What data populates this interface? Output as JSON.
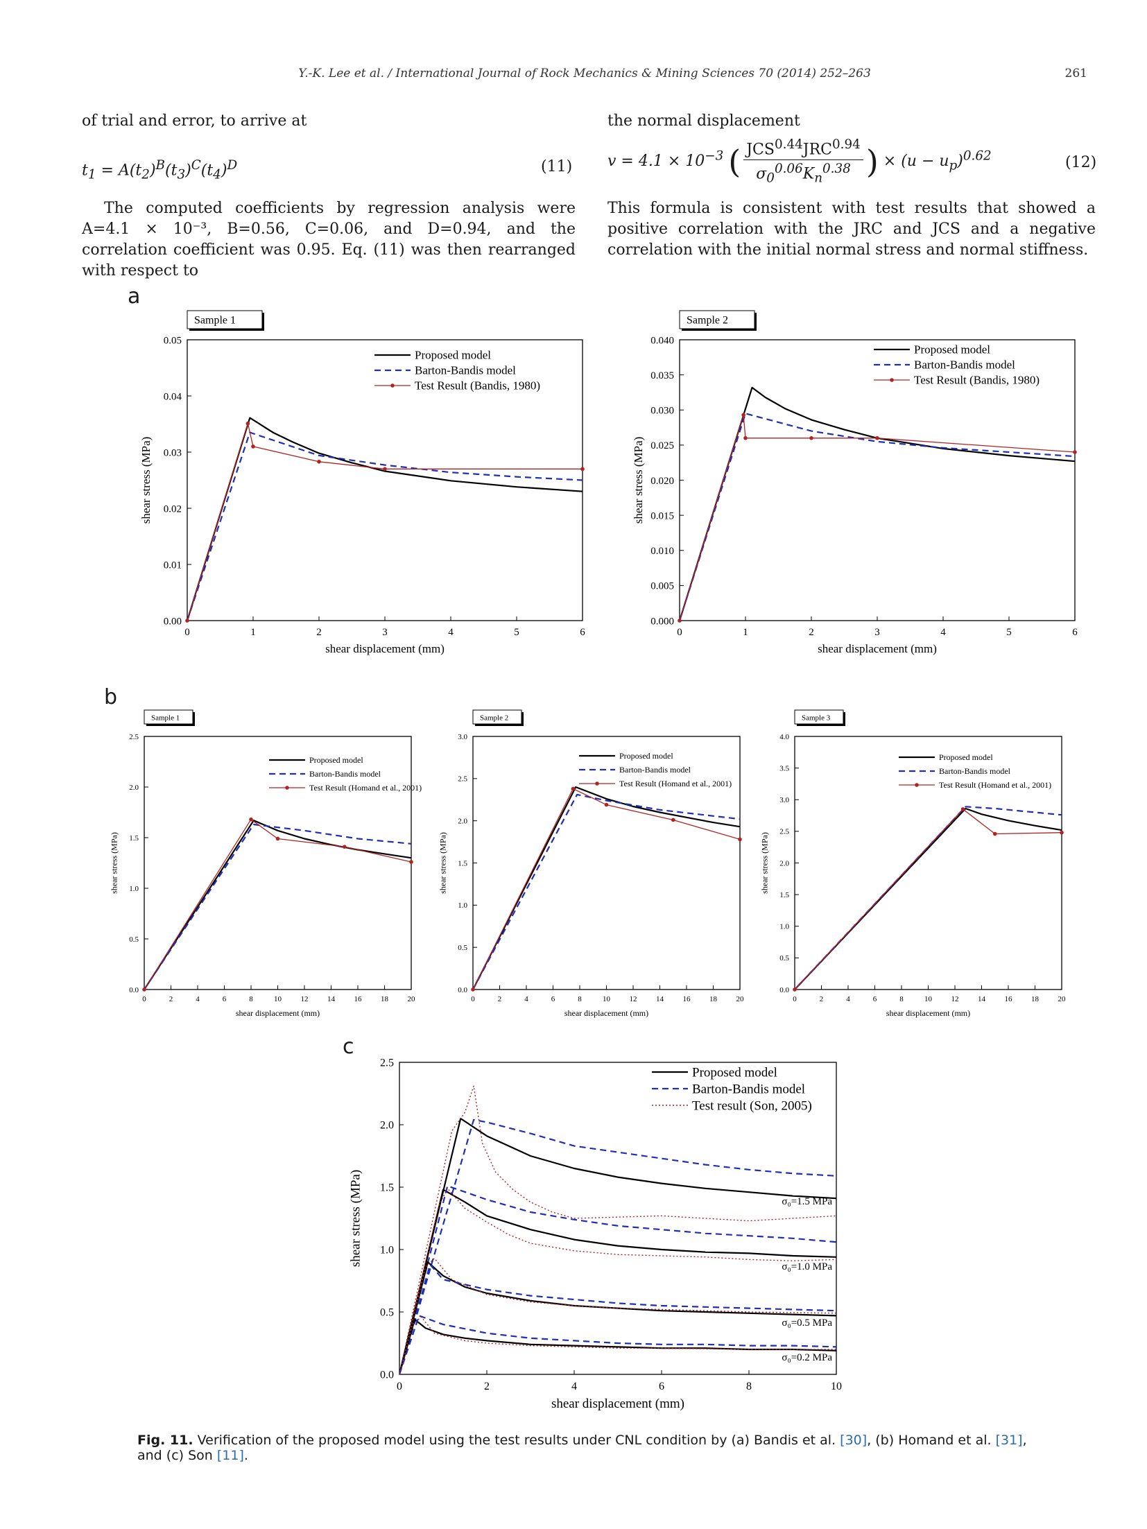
{
  "header": {
    "running_head": "Y.-K. Lee et al. / International Journal of Rock Mechanics & Mining Sciences 70 (2014) 252–263",
    "page_number": "261"
  },
  "left_column": {
    "lead_in": "of trial and error, to arrive at",
    "eq11_lhs": "t",
    "eq11_lhs_sub": "1",
    "eq11_rhs_a": "= A(t",
    "eq11_rhs_a_sub": "2",
    "eq11_rhs_b": ")",
    "eq11_rhs_b_sup": "B",
    "eq11_rhs_c": "(t",
    "eq11_rhs_c_sub": "3",
    "eq11_rhs_d": ")",
    "eq11_rhs_d_sup": "C",
    "eq11_rhs_e": "(t",
    "eq11_rhs_e_sub": "4",
    "eq11_rhs_f": ")",
    "eq11_rhs_f_sup": "D",
    "eq11_number": "(11)",
    "paragraph_1": "The computed coefficients by regression analysis were A=4.1 × 10⁻³, B=0.56, C=0.06, and D=0.94, and the correlation coefficient was 0.95. Eq. (11) was then rearranged with respect to"
  },
  "right_column": {
    "lead_in": "the normal displacement",
    "eq12_v": "v = 4.1 × 10",
    "eq12_exp": "−3",
    "eq12_num": "JCS",
    "eq12_num_sup1": "0.44",
    "eq12_num_mid": "JRC",
    "eq12_num_sup2": "0.94",
    "eq12_den": "σ",
    "eq12_den_sub1": "0",
    "eq12_den_sup1": "0.06",
    "eq12_den_k": "K",
    "eq12_den_sub2": "n",
    "eq12_den_sup2": "0.38",
    "eq12_tail": "× (u − u",
    "eq12_tail_sub": "p",
    "eq12_tail_end": ")",
    "eq12_tail_sup": "0.62",
    "eq12_number": "(12)",
    "paragraph_1": "This formula is consistent with test results that showed a positive correlation with the JRC and JCS and a negative correlation with the initial normal stress and normal stiffness."
  },
  "figure": {
    "panel_a": "a",
    "panel_b": "b",
    "panel_c": "c",
    "caption_label": "Fig. 11.",
    "caption_text": " Verification of the proposed model using the test results under CNL condition by (a) Bandis et al. ",
    "ref_30": "[30]",
    "caption_mid1": ", (b) Homand et al. ",
    "ref_31": "[31]",
    "caption_mid2": ", and (c) Son ",
    "ref_11": "[11]",
    "caption_end": "."
  },
  "colors": {
    "proposed": "#000000",
    "barton": "#1f2fb5",
    "test": "#b22222"
  },
  "chart_data": [
    {
      "id": "a1",
      "type": "line",
      "sample_label": "Sample 1",
      "xlabel": "shear displacement (mm)",
      "ylabel": "shear stress (MPa)",
      "xlim": [
        0,
        6
      ],
      "ylim": [
        0,
        0.05
      ],
      "xticks": [
        0,
        1,
        2,
        3,
        4,
        5,
        6
      ],
      "yticks": [
        0,
        0.01,
        0.02,
        0.03,
        0.04,
        0.05
      ],
      "ytick_labels": [
        "0.00",
        "0.01",
        "0.02",
        "0.03",
        "0.04",
        "0.05"
      ],
      "legend": [
        "Proposed model",
        "Barton-Bandis model",
        "Test Result (Bandis, 1980)"
      ],
      "series": [
        {
          "name": "Proposed model",
          "style": "solid",
          "x": [
            0,
            0.95,
            1.1,
            1.3,
            1.6,
            2.0,
            2.5,
            3.0,
            4.0,
            5.0,
            6.0
          ],
          "y": [
            0,
            0.0361,
            0.035,
            0.0335,
            0.0318,
            0.0298,
            0.0281,
            0.0266,
            0.0249,
            0.0238,
            0.023
          ]
        },
        {
          "name": "Barton-Bandis model",
          "style": "dash",
          "x": [
            0,
            0.95,
            2.0,
            3.0,
            4.0,
            5.0,
            6.0
          ],
          "y": [
            0,
            0.0335,
            0.0294,
            0.0277,
            0.0264,
            0.0256,
            0.025
          ]
        },
        {
          "name": "Test Result (Bandis, 1980)",
          "style": "marker",
          "x": [
            0,
            0.92,
            1.0,
            2.0,
            3.0,
            6.0
          ],
          "y": [
            0,
            0.0351,
            0.031,
            0.0283,
            0.027,
            0.027
          ]
        }
      ]
    },
    {
      "id": "a2",
      "type": "line",
      "sample_label": "Sample 2",
      "xlabel": "shear displacement (mm)",
      "ylabel": "shear stress (MPa)",
      "xlim": [
        0,
        6
      ],
      "ylim": [
        0,
        0.04
      ],
      "xticks": [
        0,
        1,
        2,
        3,
        4,
        5,
        6
      ],
      "yticks": [
        0,
        0.005,
        0.01,
        0.015,
        0.02,
        0.025,
        0.03,
        0.035,
        0.04
      ],
      "ytick_labels": [
        "0.000",
        "0.005",
        "0.010",
        "0.015",
        "0.020",
        "0.025",
        "0.030",
        "0.035",
        "0.040"
      ],
      "legend": [
        "Proposed model",
        "Barton-Bandis model",
        "Test Result (Bandis, 1980)"
      ],
      "series": [
        {
          "name": "Proposed model",
          "style": "solid",
          "x": [
            0,
            1.1,
            1.3,
            1.6,
            2.0,
            2.5,
            3.0,
            4.0,
            5.0,
            6.0
          ],
          "y": [
            0,
            0.0332,
            0.0318,
            0.0302,
            0.0286,
            0.0272,
            0.026,
            0.0245,
            0.0235,
            0.0227
          ]
        },
        {
          "name": "Barton-Bandis model",
          "style": "dash",
          "x": [
            0,
            1.0,
            2.0,
            3.0,
            4.0,
            5.0,
            6.0
          ],
          "y": [
            0,
            0.0295,
            0.027,
            0.0255,
            0.0246,
            0.024,
            0.0234
          ]
        },
        {
          "name": "Test Result (Bandis, 1980)",
          "style": "marker",
          "x": [
            0,
            0.97,
            1.0,
            2.0,
            3.0,
            6.0
          ],
          "y": [
            0,
            0.0293,
            0.026,
            0.026,
            0.026,
            0.024
          ]
        }
      ]
    },
    {
      "id": "b1",
      "type": "line",
      "sample_label": "Sample 1",
      "xlabel": "shear displacement (mm)",
      "ylabel": "shear stress (MPa)",
      "xlim": [
        0,
        20
      ],
      "ylim": [
        0,
        2.5
      ],
      "xticks": [
        0,
        2,
        4,
        6,
        8,
        10,
        12,
        14,
        16,
        18,
        20
      ],
      "yticks": [
        0,
        0.5,
        1.0,
        1.5,
        2.0,
        2.5
      ],
      "ytick_labels": [
        "0.0",
        "0.5",
        "1.0",
        "1.5",
        "2.0",
        "2.5"
      ],
      "legend": [
        "Proposed model",
        "Barton-Bandis model",
        "Test Result (Homand et al., 2001)"
      ],
      "series": [
        {
          "name": "Proposed model",
          "style": "solid",
          "x": [
            0,
            8.2,
            10,
            12,
            14,
            16,
            18,
            20
          ],
          "y": [
            0,
            1.67,
            1.57,
            1.49,
            1.43,
            1.38,
            1.34,
            1.3
          ]
        },
        {
          "name": "Barton-Bandis model",
          "style": "dash",
          "x": [
            0,
            8.2,
            12,
            16,
            20
          ],
          "y": [
            0,
            1.63,
            1.57,
            1.49,
            1.44
          ]
        },
        {
          "name": "Test Result (Homand et al., 2001)",
          "style": "marker",
          "x": [
            0,
            8.0,
            10,
            15,
            20
          ],
          "y": [
            0,
            1.68,
            1.49,
            1.41,
            1.26
          ]
        }
      ]
    },
    {
      "id": "b2",
      "type": "line",
      "sample_label": "Sample 2",
      "xlabel": "shear displacement (mm)",
      "ylabel": "shear stress (MPa)",
      "xlim": [
        0,
        20
      ],
      "ylim": [
        0,
        3.0
      ],
      "xticks": [
        0,
        2,
        4,
        6,
        8,
        10,
        12,
        14,
        16,
        18,
        20
      ],
      "yticks": [
        0,
        0.5,
        1.0,
        1.5,
        2.0,
        2.5,
        3.0
      ],
      "ytick_labels": [
        "0.0",
        "0.5",
        "1.0",
        "1.5",
        "2.0",
        "2.5",
        "3.0"
      ],
      "legend": [
        "Proposed model",
        "Barton-Bandis model",
        "Test Result (Homand et al., 2001)"
      ],
      "series": [
        {
          "name": "Proposed model",
          "style": "solid",
          "x": [
            0,
            7.7,
            10,
            12,
            14,
            16,
            18,
            20
          ],
          "y": [
            0,
            2.4,
            2.26,
            2.17,
            2.1,
            2.04,
            1.98,
            1.93
          ]
        },
        {
          "name": "Barton-Bandis model",
          "style": "dash",
          "x": [
            0,
            7.8,
            10,
            14,
            20
          ],
          "y": [
            0,
            2.31,
            2.24,
            2.13,
            2.02
          ]
        },
        {
          "name": "Test Result (Homand et al., 2001)",
          "style": "marker",
          "x": [
            0,
            7.5,
            10,
            15,
            20
          ],
          "y": [
            0,
            2.38,
            2.19,
            2.01,
            1.78
          ]
        }
      ]
    },
    {
      "id": "b3",
      "type": "line",
      "sample_label": "Sample 3",
      "xlabel": "shear displacement (mm)",
      "ylabel": "shear stress (MPa)",
      "xlim": [
        0,
        20
      ],
      "ylim": [
        0,
        4.0
      ],
      "xticks": [
        0,
        2,
        4,
        6,
        8,
        10,
        12,
        14,
        16,
        18,
        20
      ],
      "yticks": [
        0,
        0.5,
        1.0,
        1.5,
        2.0,
        2.5,
        3.0,
        3.5,
        4.0
      ],
      "ytick_labels": [
        "0.0",
        "0.5",
        "1.0",
        "1.5",
        "2.0",
        "2.5",
        "3.0",
        "3.5",
        "4.0"
      ],
      "legend": [
        "Proposed model",
        "Barton-Bandis model",
        "Test Result (Homand et al., 2001)"
      ],
      "series": [
        {
          "name": "Proposed model",
          "style": "solid",
          "x": [
            0,
            12.8,
            14,
            16,
            18,
            20
          ],
          "y": [
            0,
            2.86,
            2.77,
            2.67,
            2.59,
            2.52
          ]
        },
        {
          "name": "Barton-Bandis model",
          "style": "dash",
          "x": [
            0,
            12.8,
            15,
            18,
            20
          ],
          "y": [
            0,
            2.89,
            2.86,
            2.8,
            2.76
          ]
        },
        {
          "name": "Test Result (Homand et al., 2001)",
          "style": "marker",
          "x": [
            0,
            12.6,
            15,
            20
          ],
          "y": [
            0,
            2.85,
            2.46,
            2.48
          ]
        }
      ]
    },
    {
      "id": "c",
      "type": "line",
      "xlabel": "shear displacement (mm)",
      "ylabel": "shear stress (MPa)",
      "xlim": [
        0,
        10
      ],
      "ylim": [
        0,
        2.5
      ],
      "xticks": [
        0,
        2,
        4,
        6,
        8,
        10
      ],
      "yticks": [
        0,
        0.5,
        1.0,
        1.5,
        2.0,
        2.5
      ],
      "ytick_labels": [
        "0.0",
        "0.5",
        "1.0",
        "1.5",
        "2.0",
        "2.5"
      ],
      "legend": [
        "Proposed model",
        "Barton-Bandis model",
        "Test result (Son, 2005)"
      ],
      "annotations": [
        "σ₀=1.5 MPa",
        "σ₀=1.0 MPa",
        "σ₀=0.5 MPa",
        "σ₀=0.2 MPa"
      ],
      "annotation_y": [
        1.36,
        0.84,
        0.39,
        0.11
      ],
      "series": [
        {
          "name": "Proposed model",
          "group": "1.5",
          "style": "solid",
          "x": [
            0,
            1.4,
            2,
            3,
            4,
            5,
            6,
            7,
            8,
            9,
            10
          ],
          "y": [
            0,
            2.05,
            1.91,
            1.75,
            1.65,
            1.58,
            1.53,
            1.49,
            1.46,
            1.43,
            1.41
          ]
        },
        {
          "name": "Barton-Bandis model",
          "group": "1.5",
          "style": "dash",
          "x": [
            0,
            1.7,
            2,
            3,
            4,
            5,
            6,
            7,
            8,
            9,
            10
          ],
          "y": [
            0,
            2.04,
            2.02,
            1.93,
            1.83,
            1.78,
            1.73,
            1.68,
            1.64,
            1.61,
            1.59
          ]
        },
        {
          "name": "Test result (Son, 2005)",
          "group": "1.5",
          "style": "dot",
          "x": [
            0,
            1.2,
            1.5,
            1.7,
            1.9,
            2.2,
            2.6,
            3,
            3.5,
            4,
            5,
            6,
            7,
            8,
            9,
            10
          ],
          "y": [
            0,
            1.95,
            2.1,
            2.31,
            1.85,
            1.62,
            1.48,
            1.38,
            1.3,
            1.25,
            1.26,
            1.27,
            1.25,
            1.23,
            1.25,
            1.27
          ]
        },
        {
          "name": "Proposed model",
          "group": "1.0",
          "style": "solid",
          "x": [
            0,
            1.0,
            1.5,
            2,
            3,
            4,
            5,
            6,
            7,
            8,
            9,
            10
          ],
          "y": [
            0,
            1.48,
            1.38,
            1.27,
            1.16,
            1.08,
            1.03,
            1.0,
            0.98,
            0.97,
            0.95,
            0.94
          ]
        },
        {
          "name": "Barton-Bandis model",
          "group": "1.0",
          "style": "dash",
          "x": [
            0,
            1.1,
            2,
            3,
            4,
            5,
            6,
            7,
            8,
            9,
            10
          ],
          "y": [
            0,
            1.51,
            1.4,
            1.3,
            1.24,
            1.19,
            1.16,
            1.13,
            1.11,
            1.09,
            1.06
          ]
        },
        {
          "name": "Test result (Son, 2005)",
          "group": "1.0",
          "style": "dot",
          "x": [
            0,
            0.9,
            1.1,
            1.5,
            2,
            2.5,
            3,
            4,
            5,
            6,
            7,
            8,
            9,
            10
          ],
          "y": [
            0,
            1.35,
            1.49,
            1.33,
            1.22,
            1.12,
            1.05,
            0.99,
            0.96,
            0.95,
            0.94,
            0.92,
            0.91,
            0.92
          ]
        },
        {
          "name": "Proposed model",
          "group": "0.5",
          "style": "solid",
          "x": [
            0,
            0.65,
            1,
            1.5,
            2,
            3,
            4,
            5,
            6,
            7,
            8,
            9,
            10
          ],
          "y": [
            0,
            0.9,
            0.79,
            0.7,
            0.65,
            0.59,
            0.55,
            0.53,
            0.51,
            0.5,
            0.49,
            0.48,
            0.47
          ]
        },
        {
          "name": "Barton-Bandis model",
          "group": "0.5",
          "style": "dash",
          "x": [
            0,
            0.7,
            1,
            2,
            3,
            4,
            5,
            6,
            7,
            8,
            9,
            10
          ],
          "y": [
            0,
            0.88,
            0.76,
            0.68,
            0.63,
            0.6,
            0.57,
            0.55,
            0.54,
            0.53,
            0.52,
            0.51
          ]
        },
        {
          "name": "Test result (Son, 2005)",
          "group": "0.5",
          "style": "dot",
          "x": [
            0,
            0.6,
            0.8,
            1.2,
            2,
            3,
            4,
            5,
            6,
            7,
            8,
            10
          ],
          "y": [
            0,
            0.86,
            0.93,
            0.76,
            0.64,
            0.58,
            0.55,
            0.53,
            0.52,
            0.51,
            0.5,
            0.49
          ]
        },
        {
          "name": "Proposed model",
          "group": "0.2",
          "style": "solid",
          "x": [
            0,
            0.35,
            0.6,
            1,
            1.5,
            2,
            3,
            4,
            5,
            6,
            7,
            8,
            9,
            10
          ],
          "y": [
            0,
            0.44,
            0.37,
            0.32,
            0.29,
            0.27,
            0.24,
            0.23,
            0.22,
            0.21,
            0.21,
            0.2,
            0.2,
            0.19
          ]
        },
        {
          "name": "Barton-Bandis model",
          "group": "0.2",
          "style": "dash",
          "x": [
            0,
            0.45,
            1,
            2,
            3,
            4,
            5,
            6,
            7,
            8,
            9,
            10
          ],
          "y": [
            0,
            0.47,
            0.4,
            0.33,
            0.29,
            0.27,
            0.25,
            0.24,
            0.24,
            0.23,
            0.23,
            0.22
          ]
        },
        {
          "name": "Test result (Son, 2005)",
          "group": "0.2",
          "style": "dot",
          "x": [
            0,
            0.3,
            0.5,
            0.8,
            1.5,
            2,
            3,
            4,
            5,
            6,
            8,
            10
          ],
          "y": [
            0,
            0.4,
            0.46,
            0.33,
            0.27,
            0.25,
            0.23,
            0.22,
            0.21,
            0.21,
            0.2,
            0.2
          ]
        }
      ]
    }
  ]
}
